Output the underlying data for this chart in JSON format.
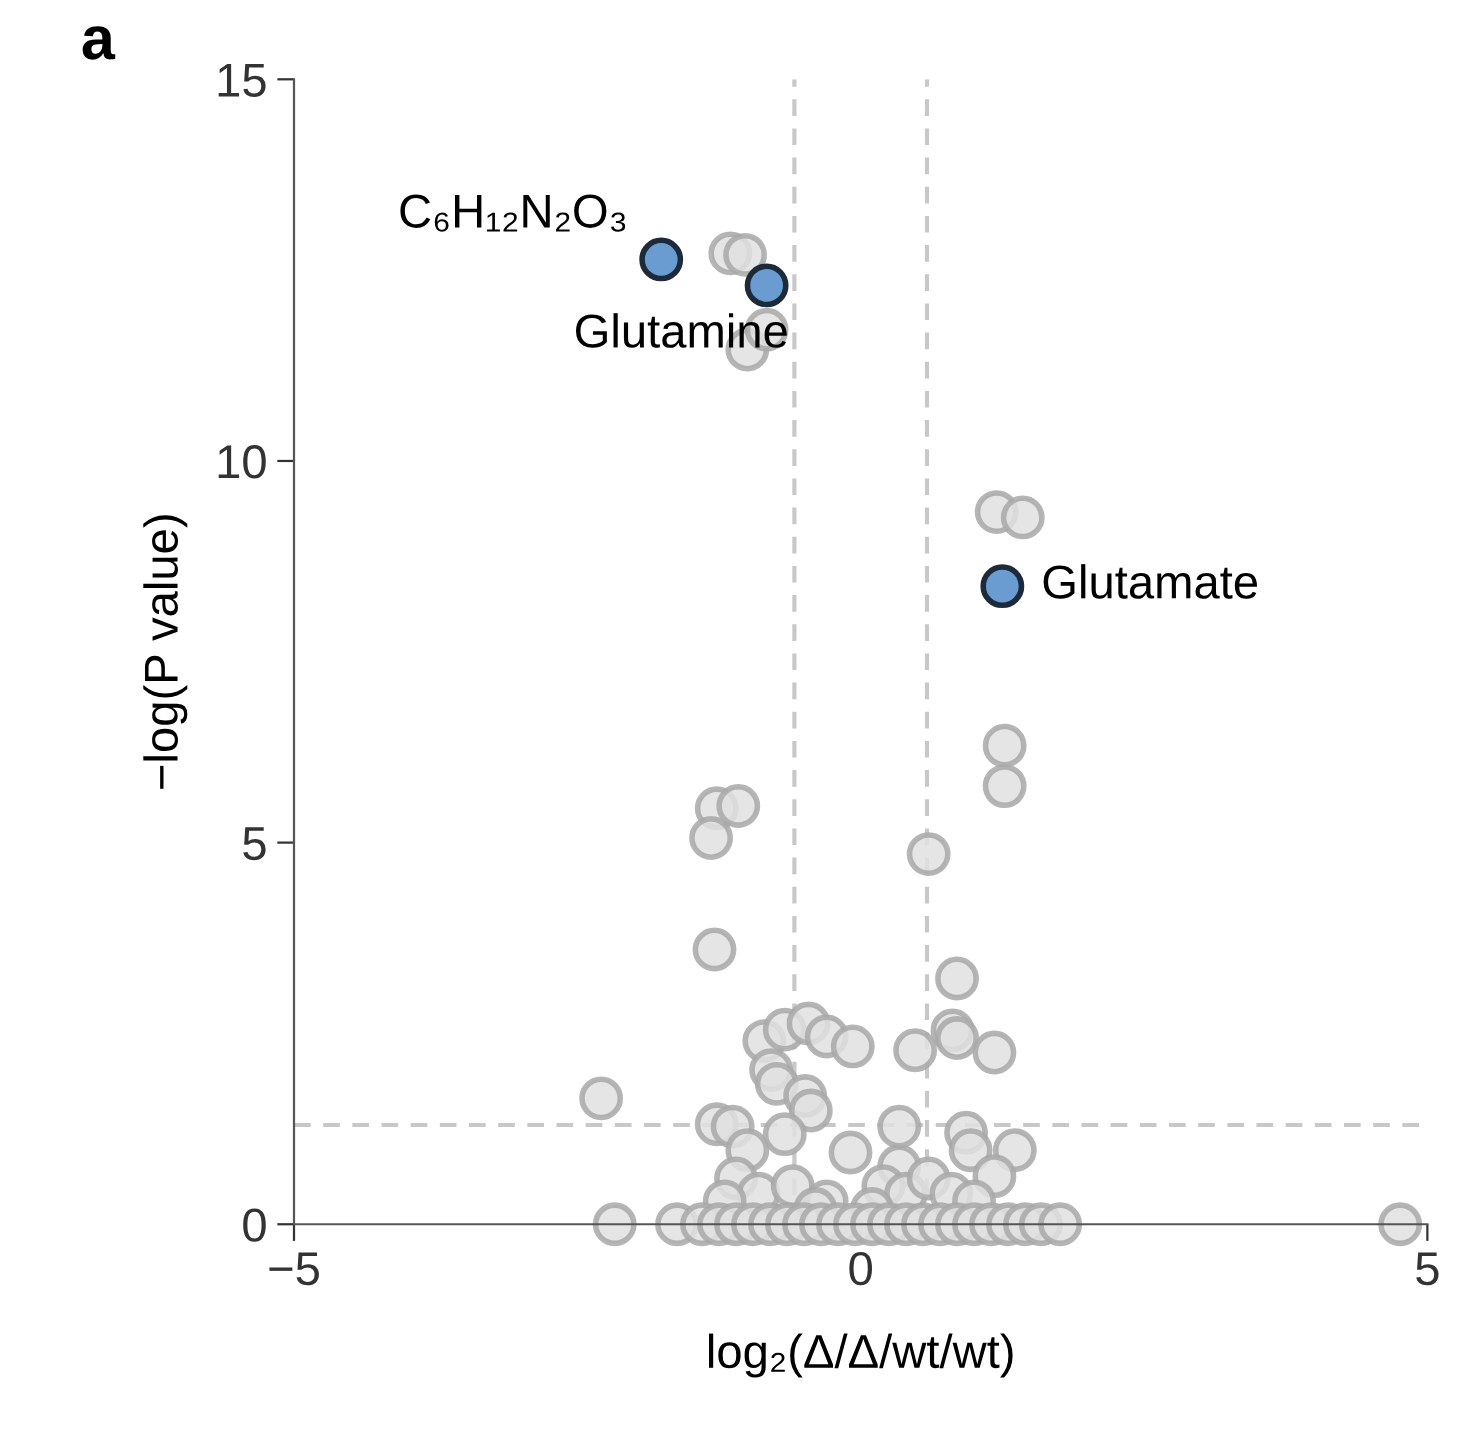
{
  "chart_data": {
    "type": "scatter",
    "xlabel": "log₂(Δ/Δ/wt/wt)",
    "ylabel": "−log(P value)",
    "xlim": [
      -5,
      5
    ],
    "ylim": [
      0,
      15
    ],
    "xticks": [
      {
        "value": -5,
        "label": "−5"
      },
      0,
      5
    ],
    "yticks": [
      0,
      5,
      10,
      15
    ],
    "grid": false,
    "legend": false,
    "marker": "circle",
    "series": [
      {
        "color": "#e0e0e0",
        "x": [
          -1.15,
          -1.02,
          -1.0,
          -0.83,
          1.2,
          1.43,
          1.27,
          1.27,
          -1.27,
          -1.08,
          -1.32,
          0.6,
          -1.29,
          0.85,
          -0.85,
          -0.67,
          -0.46,
          -0.3,
          -0.07,
          0.48,
          0.81,
          0.85,
          1.18,
          -0.79,
          -0.74,
          -0.49,
          -0.44,
          -2.29,
          -1.27,
          -1.13,
          -0.67,
          -1.0,
          -0.09,
          0.34,
          0.34,
          0.93,
          0.97,
          1.36,
          1.18,
          -1.1,
          -0.9,
          -0.6,
          -0.3,
          0.2,
          0.4,
          0.6,
          0.8,
          1.0,
          -1.2,
          -0.4,
          0.1,
          -2.17,
          -1.62,
          -1.4,
          -1.25,
          -1.1,
          -0.95,
          -0.8,
          -0.65,
          -0.5,
          -0.35,
          -0.2,
          -0.05,
          0.1,
          0.25,
          0.4,
          0.55,
          0.7,
          0.85,
          1.0,
          1.15,
          1.3,
          1.45,
          1.59,
          1.76,
          4.76
        ],
        "values": [
          12.72,
          12.7,
          11.46,
          11.72,
          9.33,
          9.26,
          6.27,
          5.74,
          5.45,
          5.48,
          5.06,
          4.85,
          3.6,
          3.22,
          2.4,
          2.55,
          2.63,
          2.46,
          2.33,
          2.28,
          2.54,
          2.44,
          2.25,
          2.02,
          1.84,
          1.68,
          1.49,
          1.65,
          1.31,
          1.28,
          1.18,
          0.97,
          0.94,
          0.76,
          1.28,
          1.2,
          0.97,
          0.97,
          0.63,
          0.6,
          0.4,
          0.5,
          0.3,
          0.5,
          0.4,
          0.6,
          0.4,
          0.3,
          0.3,
          0.2,
          0.2,
          0,
          0,
          0,
          0,
          0,
          0,
          0,
          0,
          0,
          0,
          0,
          0,
          0,
          0,
          0,
          0,
          0,
          0,
          0,
          0,
          0,
          0,
          0,
          0,
          0
        ]
      },
      {
        "color": "#6a9bd1",
        "x": [
          -1.76,
          -0.83,
          1.25
        ],
        "values": [
          12.64,
          12.3,
          8.36
        ]
      }
    ],
    "ref_lines": [
      {
        "axis": "x",
        "value": -0.585,
        "color": "#c8c8c8",
        "line_style": "dashed"
      },
      {
        "axis": "x",
        "value": 0.585,
        "color": "#c8c8c8",
        "line_style": "dashed"
      },
      {
        "axis": "y",
        "value": 1.3,
        "color": "#c8c8c8",
        "line_style": "dashed"
      }
    ],
    "annotations": [
      {
        "text": "C₆H₁₂N₂O₃",
        "x": -1.76,
        "y": 12.64
      },
      {
        "text": "Glutamine",
        "x": -0.83,
        "y": 12.3
      },
      {
        "text": "Glutamate",
        "x": 1.25,
        "y": 8.36
      },
      "a"
    ]
  }
}
